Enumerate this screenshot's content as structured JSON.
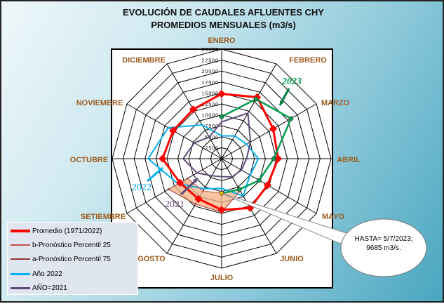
{
  "title_line1": "EVOLUCIÓN DE CAUDALES AFLUENTES CHY",
  "title_line2": "PROMEDIOS MENSUALES (m3/s)",
  "callout": {
    "line1": "HASTA= 5/7/2023;",
    "line2": "9685 m3/s."
  },
  "annotations": {
    "y2023": "2023",
    "y2022": "2022",
    "y2021": "2021"
  },
  "legend": [
    {
      "label": "Promedio (1971/2022)",
      "color": "#ff0000"
    },
    {
      "label": "b-Pronóstico Percentil 25",
      "color": "#c0504d"
    },
    {
      "label": "a-Pronóstico Percentil 75",
      "color": "#943634"
    },
    {
      "label": "Año 2022",
      "color": "#00b0f0"
    },
    {
      "label": "AÑO=2021",
      "color": "#604a7b"
    }
  ],
  "chart_data": {
    "type": "radar",
    "categories": [
      "ENERO",
      "FEBRERO",
      "MARZO",
      "ABRIL",
      "MAYO",
      "JUNIO",
      "JULIO",
      "AGOSTO",
      "SETIEMBRE",
      "OCTUBRE",
      "NOVIEMBRE",
      "DICIEMBRE"
    ],
    "rlim": [
      0,
      25000
    ],
    "ticks": [
      "2500",
      "5000",
      "7500",
      "10000",
      "12500",
      "15000",
      "17500",
      "20000",
      "22500",
      "25000"
    ],
    "grid": true,
    "legend_position": "bottom-left",
    "series": [
      {
        "name": "Promedio (1971/2022)",
        "color": "#ff0000",
        "values": [
          14800,
          16200,
          13600,
          12900,
          12100,
          13000,
          11700,
          10600,
          11000,
          13500,
          12800,
          13000
        ]
      },
      {
        "name": "b-Pronóstico Percentil 25",
        "color": "#c0504d",
        "values": [
          null,
          null,
          null,
          null,
          null,
          null,
          7900,
          8500,
          9000,
          null,
          null,
          null
        ]
      },
      {
        "name": "a-Pronóstico Percentil 75",
        "color": "#943634",
        "values": [
          null,
          null,
          null,
          null,
          null,
          8500,
          12200,
          12000,
          14000,
          null,
          null,
          null
        ]
      },
      {
        "name": "Año 2022",
        "color": "#00b0f0",
        "values": [
          5200,
          6000,
          6600,
          8400,
          7500,
          9800,
          6800,
          7900,
          11500,
          16800,
          14100,
          8900
        ]
      },
      {
        "name": "AÑO=2021",
        "color": "#604a7b",
        "values": [
          8400,
          12000,
          7600,
          5700,
          5200,
          4800,
          4100,
          4500,
          6500,
          8800,
          7200,
          5700
        ]
      },
      {
        "name": "2023",
        "color": "#00a050",
        "values": [
          9600,
          15700,
          18300,
          11900,
          9900,
          8100,
          7900,
          null,
          null,
          null,
          null,
          null
        ]
      }
    ]
  }
}
